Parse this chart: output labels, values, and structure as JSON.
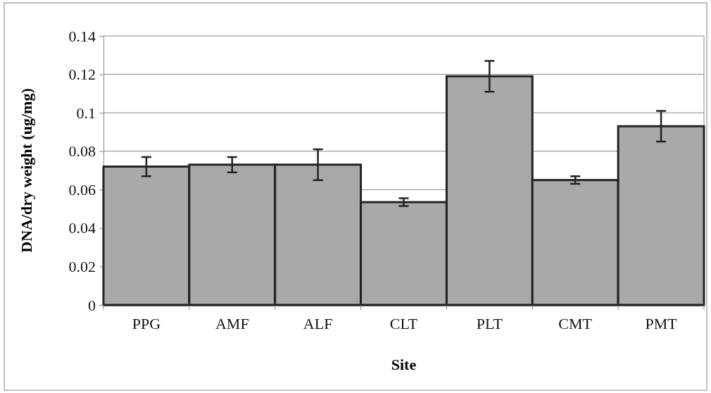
{
  "chart_data": {
    "type": "bar",
    "xlabel": "Site",
    "ylabel": "DNA/dry weight (ug/mg)",
    "categories": [
      "PPG",
      "AMF",
      "ALF",
      "CLT",
      "PLT",
      "CMT",
      "PMT"
    ],
    "values": [
      0.072,
      0.073,
      0.073,
      0.0535,
      0.119,
      0.065,
      0.093
    ],
    "errors": [
      0.005,
      0.004,
      0.008,
      0.002,
      0.008,
      0.002,
      0.008
    ],
    "color": "#a9a9a9",
    "ylim": [
      0,
      0.14
    ],
    "yticks": [
      0,
      0.02,
      0.04,
      0.06,
      0.08,
      0.1,
      0.12,
      0.14
    ],
    "grid": "y"
  }
}
